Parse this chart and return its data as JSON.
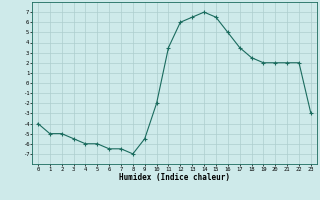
{
  "x": [
    0,
    1,
    2,
    3,
    4,
    5,
    6,
    7,
    8,
    9,
    10,
    11,
    12,
    13,
    14,
    15,
    16,
    17,
    18,
    19,
    20,
    21,
    22,
    23
  ],
  "y": [
    -4.0,
    -5.0,
    -5.0,
    -5.5,
    -6.0,
    -6.0,
    -6.5,
    -6.5,
    -7.0,
    -5.5,
    -2.0,
    3.5,
    6.0,
    6.5,
    7.0,
    6.5,
    5.0,
    3.5,
    2.5,
    2.0,
    2.0,
    2.0,
    2.0,
    -3.0
  ],
  "xlabel": "Humidex (Indice chaleur)",
  "bg_color": "#ceeaea",
  "line_color": "#1a6b5e",
  "grid_color": "#aecece",
  "ylim": [
    -8,
    8
  ],
  "xlim": [
    -0.5,
    23.5
  ],
  "yticks": [
    -7,
    -6,
    -5,
    -4,
    -3,
    -2,
    -1,
    0,
    1,
    2,
    3,
    4,
    5,
    6,
    7
  ],
  "xticks": [
    0,
    1,
    2,
    3,
    4,
    5,
    6,
    7,
    8,
    9,
    10,
    11,
    12,
    13,
    14,
    15,
    16,
    17,
    18,
    19,
    20,
    21,
    22,
    23
  ]
}
